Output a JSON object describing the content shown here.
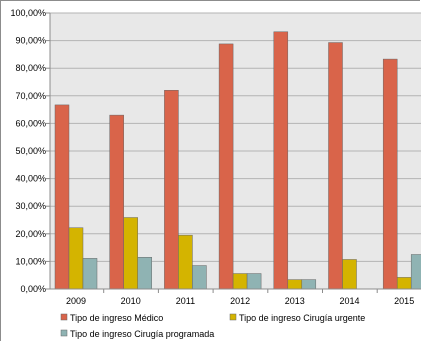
{
  "chart_data": {
    "type": "bar",
    "categories": [
      "2009",
      "2010",
      "2011",
      "2012",
      "2013",
      "2014",
      "2015"
    ],
    "series": [
      {
        "name": "Tipo de ingreso Médico",
        "color": "#d9644a",
        "values": [
          66.7,
          63.0,
          72.0,
          88.8,
          93.2,
          89.3,
          83.3
        ]
      },
      {
        "name": "Tipo de ingreso Cirugía urgente",
        "color": "#d4b400",
        "values": [
          22.2,
          25.9,
          19.5,
          5.6,
          3.4,
          10.7,
          4.2
        ]
      },
      {
        "name": "Tipo de ingreso Cirugía programada",
        "color": "#8fb3b3",
        "values": [
          11.1,
          11.5,
          8.5,
          5.6,
          3.4,
          0,
          12.5
        ]
      }
    ],
    "y_ticks": [
      "0,00%",
      "10,00%",
      "20,00%",
      "30,00%",
      "40,00%",
      "50,00%",
      "60,00%",
      "70,00%",
      "80,00%",
      "90,00%",
      "100,00%"
    ],
    "ylim": [
      0,
      100
    ],
    "grid": true,
    "legend_position": "bottom",
    "plot_background": "#e8e8e8"
  }
}
